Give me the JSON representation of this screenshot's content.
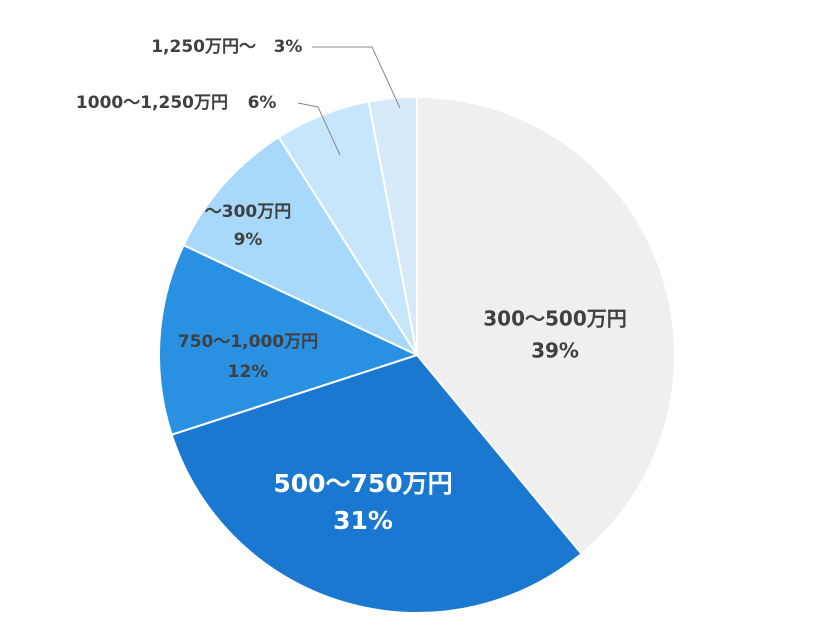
{
  "chart_data": {
    "type": "pie",
    "categories": [
      "300〜500万円",
      "500〜750万円",
      "750〜1,000万円",
      "〜300万円",
      "1000〜1,250万円",
      "1,250万円〜"
    ],
    "values": [
      39,
      31,
      12,
      9,
      6,
      3
    ],
    "value_labels": [
      "39%",
      "31%",
      "12%",
      "9%",
      "6%",
      "3%"
    ],
    "colors": [
      "#efefef",
      "#1a78d0",
      "#2a90e2",
      "#a9d9fa",
      "#c6e6fb",
      "#d6eaf9"
    ]
  }
}
